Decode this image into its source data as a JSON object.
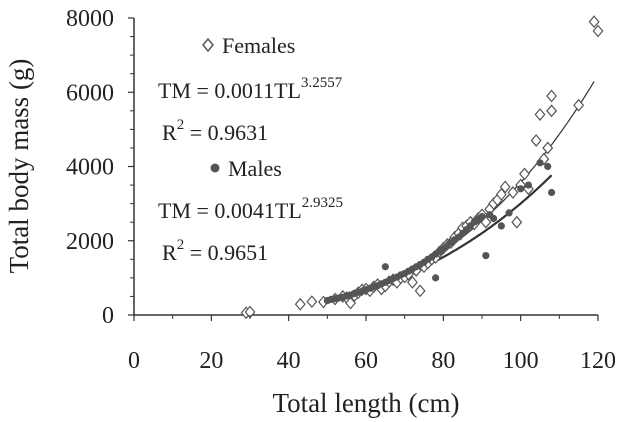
{
  "chart_data": {
    "type": "scatter",
    "title": "",
    "xlabel": "Total length (cm)",
    "ylabel": "Total body mass (g)",
    "xlim": [
      0,
      120
    ],
    "ylim": [
      0,
      8000
    ],
    "x_ticks": [
      "0",
      "20",
      "40",
      "60",
      "80",
      "100",
      "120"
    ],
    "y_ticks": [
      "0",
      "2000",
      "4000",
      "6000",
      "8000"
    ],
    "grid": false,
    "legend_position": "upper-left",
    "series": [
      {
        "name": "Females",
        "marker": "open-diamond",
        "color": "#555555",
        "fit": {
          "a": 0.0011,
          "b": 3.2557,
          "x_range": [
            49,
            119
          ]
        },
        "equation_prefix": "TM = 0.0011TL",
        "equation_exponent": "3.2557",
        "r2_prefix": "R",
        "r2_exponent": "2",
        "r2_suffix": " = 0.9631",
        "points": [
          [
            29,
            60
          ],
          [
            30,
            80
          ],
          [
            43,
            290
          ],
          [
            46,
            360
          ],
          [
            49,
            350
          ],
          [
            52,
            430
          ],
          [
            54,
            500
          ],
          [
            55,
            470
          ],
          [
            56,
            320
          ],
          [
            57,
            520
          ],
          [
            58,
            600
          ],
          [
            59,
            680
          ],
          [
            60,
            700
          ],
          [
            61,
            650
          ],
          [
            62,
            760
          ],
          [
            63,
            820
          ],
          [
            64,
            700
          ],
          [
            65,
            780
          ],
          [
            66,
            900
          ],
          [
            67,
            950
          ],
          [
            68,
            880
          ],
          [
            69,
            1000
          ],
          [
            70,
            1020
          ],
          [
            71,
            1100
          ],
          [
            72,
            880
          ],
          [
            73,
            1200
          ],
          [
            74,
            650
          ],
          [
            75,
            1300
          ],
          [
            76,
            1400
          ],
          [
            77,
            1500
          ],
          [
            78,
            1550
          ],
          [
            79,
            1700
          ],
          [
            80,
            1800
          ],
          [
            81,
            1900
          ],
          [
            82,
            1950
          ],
          [
            83,
            2100
          ],
          [
            84,
            2200
          ],
          [
            85,
            2350
          ],
          [
            86,
            2400
          ],
          [
            87,
            2500
          ],
          [
            88,
            2450
          ],
          [
            89,
            2600
          ],
          [
            90,
            2700
          ],
          [
            91,
            2500
          ],
          [
            92,
            2850
          ],
          [
            93,
            3000
          ],
          [
            94,
            3100
          ],
          [
            95,
            3250
          ],
          [
            96,
            3450
          ],
          [
            98,
            3300
          ],
          [
            99,
            2500
          ],
          [
            100,
            3500
          ],
          [
            101,
            3800
          ],
          [
            102,
            3400
          ],
          [
            104,
            4700
          ],
          [
            105,
            5400
          ],
          [
            106,
            4200
          ],
          [
            107,
            4500
          ],
          [
            108,
            5500
          ],
          [
            108,
            5900
          ],
          [
            115,
            5650
          ],
          [
            119,
            7900
          ],
          [
            120,
            7650
          ]
        ]
      },
      {
        "name": "Males",
        "marker": "filled-circle",
        "color": "#555555",
        "fit": {
          "a": 0.0041,
          "b": 2.9325,
          "x_range": [
            49,
            108
          ]
        },
        "equation_prefix": "TM = 0.0041TL",
        "equation_exponent": "2.9325",
        "r2_prefix": "R",
        "r2_exponent": "2",
        "r2_suffix": " = 0.9651",
        "points": [
          [
            50,
            390
          ],
          [
            51,
            420
          ],
          [
            52,
            440
          ],
          [
            53,
            460
          ],
          [
            54,
            480
          ],
          [
            55,
            510
          ],
          [
            56,
            540
          ],
          [
            57,
            580
          ],
          [
            58,
            610
          ],
          [
            59,
            640
          ],
          [
            60,
            680
          ],
          [
            61,
            720
          ],
          [
            62,
            760
          ],
          [
            63,
            790
          ],
          [
            64,
            840
          ],
          [
            65,
            880
          ],
          [
            65,
            1300
          ],
          [
            66,
            930
          ],
          [
            67,
            980
          ],
          [
            68,
            1020
          ],
          [
            69,
            1080
          ],
          [
            70,
            1120
          ],
          [
            71,
            1180
          ],
          [
            72,
            1240
          ],
          [
            73,
            1300
          ],
          [
            74,
            1360
          ],
          [
            75,
            1420
          ],
          [
            76,
            1500
          ],
          [
            77,
            1560
          ],
          [
            78,
            1640
          ],
          [
            78,
            1000
          ],
          [
            79,
            1700
          ],
          [
            80,
            1780
          ],
          [
            81,
            1860
          ],
          [
            82,
            1950
          ],
          [
            83,
            2030
          ],
          [
            84,
            2100
          ],
          [
            85,
            2200
          ],
          [
            86,
            2300
          ],
          [
            87,
            2400
          ],
          [
            88,
            2500
          ],
          [
            89,
            2580
          ],
          [
            90,
            2650
          ],
          [
            91,
            1600
          ],
          [
            92,
            2700
          ],
          [
            93,
            2600
          ],
          [
            95,
            2400
          ],
          [
            97,
            2750
          ],
          [
            100,
            3400
          ],
          [
            102,
            3500
          ],
          [
            105,
            4100
          ],
          [
            107,
            4000
          ],
          [
            108,
            3300
          ]
        ]
      }
    ]
  }
}
